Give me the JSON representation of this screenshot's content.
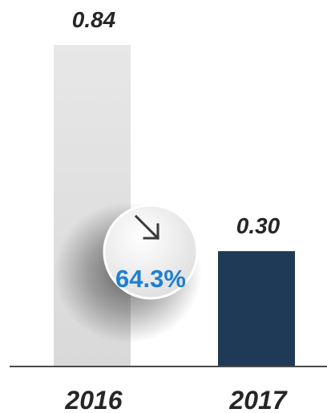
{
  "chart_data": {
    "type": "bar",
    "categories": [
      "2016",
      "2017"
    ],
    "values": [
      0.84,
      0.3
    ],
    "value_labels": [
      "0.84",
      "0.30"
    ],
    "ylim": [
      0,
      0.84
    ],
    "grid": false,
    "bar_colors": [
      "#e6e6e6",
      "#1f3a56"
    ],
    "change": {
      "label": "64.3%",
      "icon": "arrow-down-right-icon",
      "color": "#1e7fd0"
    }
  }
}
